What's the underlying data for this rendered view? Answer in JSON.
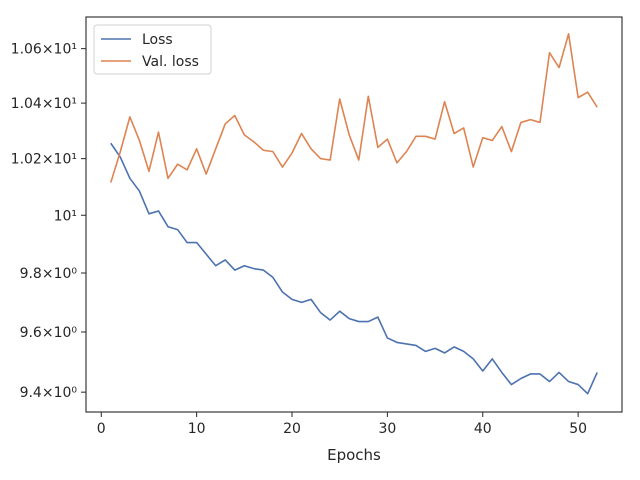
{
  "chart_data": {
    "type": "line",
    "title": "",
    "xlabel": "Epochs",
    "ylabel": "",
    "yscale": "log",
    "grid": false,
    "legend_position": "upper-left",
    "xlim": [
      -1.6,
      54.6
    ],
    "ylim": [
      9.335,
      10.718
    ],
    "x_ticks": [
      0,
      10,
      20,
      30,
      40,
      50
    ],
    "x_tick_labels": [
      "0",
      "10",
      "20",
      "30",
      "40",
      "50"
    ],
    "y_ticks": [
      9.4,
      9.6,
      9.8,
      10.0,
      10.2,
      10.4,
      10.6
    ],
    "y_tick_labels": [
      "9.4×10⁰",
      "9.6×10⁰",
      "9.8×10⁰",
      "10¹",
      "1.02×10¹",
      "1.04×10¹",
      "1.06×10¹"
    ],
    "x": [
      1,
      2,
      3,
      4,
      5,
      6,
      7,
      8,
      9,
      10,
      11,
      12,
      13,
      14,
      15,
      16,
      17,
      18,
      19,
      20,
      21,
      22,
      23,
      24,
      25,
      26,
      27,
      28,
      29,
      30,
      31,
      32,
      33,
      34,
      35,
      36,
      37,
      38,
      39,
      40,
      41,
      42,
      43,
      44,
      45,
      46,
      47,
      48,
      49,
      50,
      51,
      52
    ],
    "series": [
      {
        "name": "Loss",
        "color": "#4c72b0",
        "values": [
          10.255,
          10.205,
          10.13,
          10.085,
          10.005,
          10.015,
          9.96,
          9.95,
          9.905,
          9.905,
          9.865,
          9.825,
          9.845,
          9.81,
          9.825,
          9.815,
          9.81,
          9.785,
          9.735,
          9.71,
          9.7,
          9.71,
          9.665,
          9.64,
          9.67,
          9.645,
          9.635,
          9.635,
          9.65,
          9.58,
          9.565,
          9.56,
          9.555,
          9.535,
          9.545,
          9.53,
          9.55,
          9.535,
          9.51,
          9.47,
          9.51,
          9.465,
          9.425,
          9.445,
          9.46,
          9.46,
          9.435,
          9.465,
          9.435,
          9.425,
          9.395,
          9.465
        ]
      },
      {
        "name": "Val. loss",
        "color": "#dd8452",
        "values": [
          10.115,
          10.225,
          10.35,
          10.265,
          10.155,
          10.295,
          10.13,
          10.18,
          10.16,
          10.235,
          10.145,
          10.235,
          10.325,
          10.355,
          10.285,
          10.26,
          10.23,
          10.225,
          10.17,
          10.22,
          10.29,
          10.235,
          10.2,
          10.195,
          10.415,
          10.285,
          10.195,
          10.425,
          10.24,
          10.27,
          10.185,
          10.225,
          10.28,
          10.28,
          10.27,
          10.405,
          10.29,
          10.31,
          10.17,
          10.275,
          10.265,
          10.315,
          10.225,
          10.33,
          10.34,
          10.33,
          10.585,
          10.53,
          10.655,
          10.42,
          10.44,
          10.385
        ]
      }
    ]
  }
}
